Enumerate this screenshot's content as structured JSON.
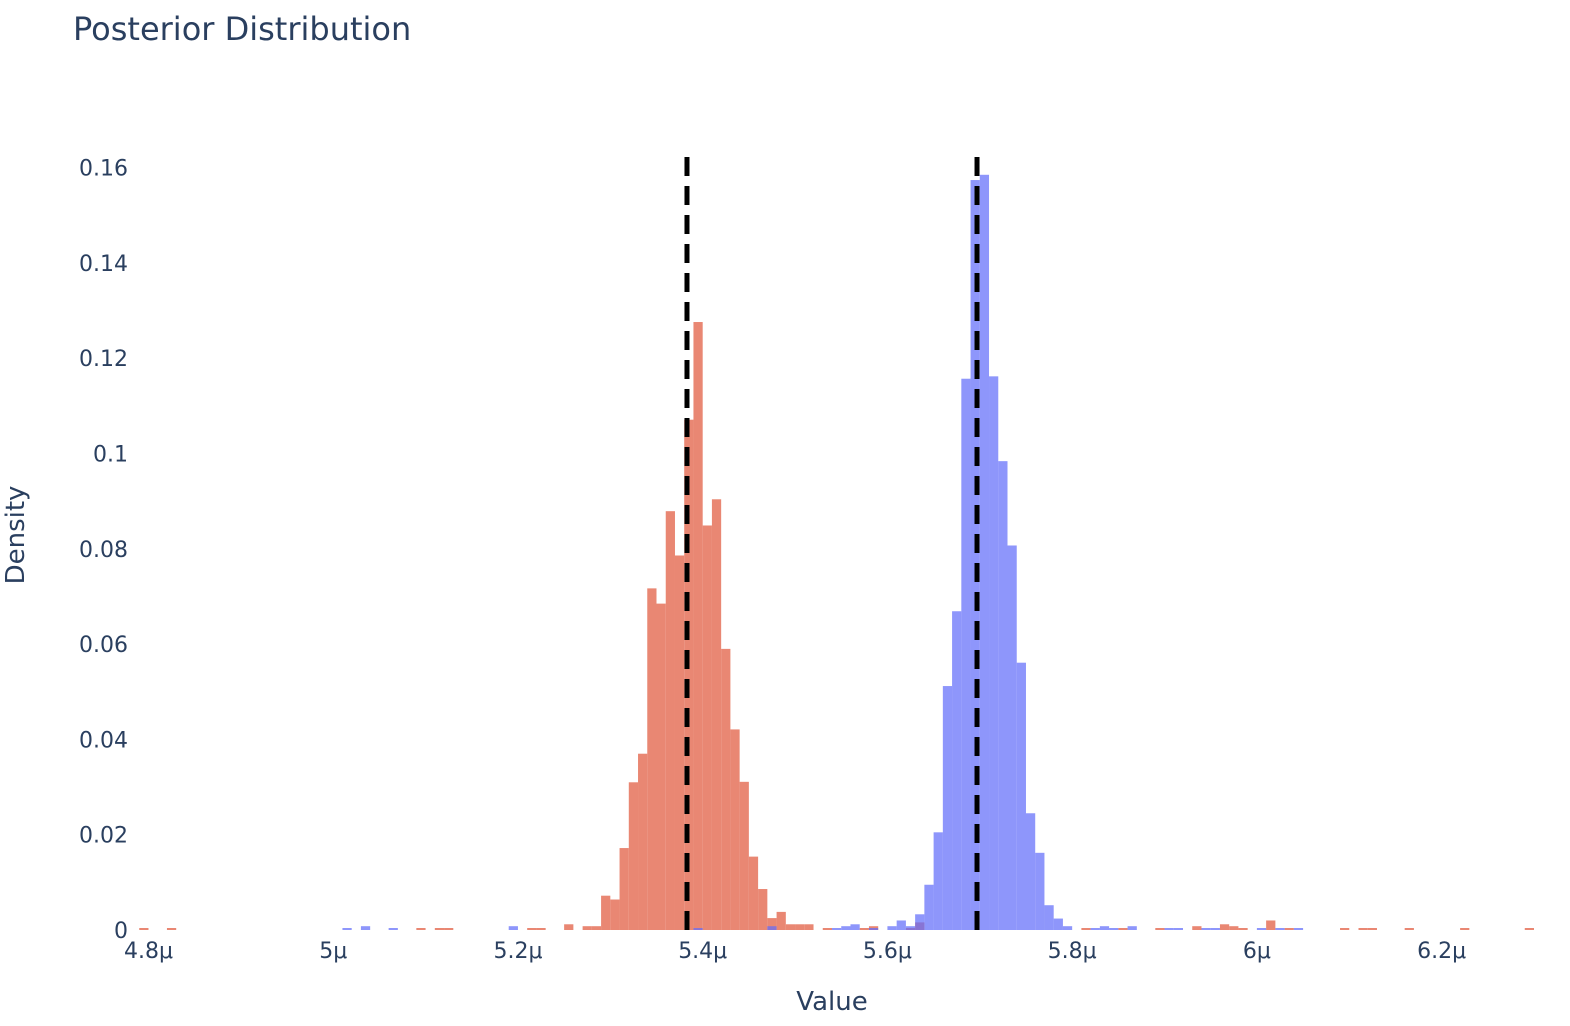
{
  "chart_data": {
    "type": "bar",
    "title": "Posterior Distribution",
    "xlabel": "Value",
    "ylabel": "Density",
    "xlim": [
      4.78,
      6.3
    ],
    "ylim": [
      0,
      0.17
    ],
    "x_unit_suffix": "μ",
    "x_ticks": [
      4.8,
      5.0,
      5.2,
      5.4,
      5.6,
      5.8,
      6.0,
      6.2
    ],
    "x_tick_labels": [
      "4.8μ",
      "5μ",
      "5.2μ",
      "5.4μ",
      "5.6μ",
      "5.8μ",
      "6μ",
      "6.2μ"
    ],
    "y_ticks": [
      0,
      0.02,
      0.04,
      0.06,
      0.08,
      0.1,
      0.12,
      0.14,
      0.16
    ],
    "y_tick_labels": [
      "0",
      "0.02",
      "0.04",
      "0.06",
      "0.08",
      "0.1",
      "0.12",
      "0.14",
      "0.16"
    ],
    "grid": false,
    "bin_width": 0.01,
    "series": [
      {
        "color": "#e5725a",
        "opacity": 0.85,
        "bins": [
          {
            "x": 4.79,
            "y": 0.0004
          },
          {
            "x": 4.82,
            "y": 0.0004
          },
          {
            "x": 5.09,
            "y": 0.0004
          },
          {
            "x": 5.11,
            "y": 0.0004
          },
          {
            "x": 5.12,
            "y": 0.0004
          },
          {
            "x": 5.21,
            "y": 0.0004
          },
          {
            "x": 5.22,
            "y": 0.0004
          },
          {
            "x": 5.25,
            "y": 0.0012
          },
          {
            "x": 5.27,
            "y": 0.0008
          },
          {
            "x": 5.28,
            "y": 0.0008
          },
          {
            "x": 5.29,
            "y": 0.0072
          },
          {
            "x": 5.3,
            "y": 0.0064
          },
          {
            "x": 5.31,
            "y": 0.0172
          },
          {
            "x": 5.32,
            "y": 0.031
          },
          {
            "x": 5.33,
            "y": 0.037
          },
          {
            "x": 5.34,
            "y": 0.0717
          },
          {
            "x": 5.35,
            "y": 0.0685
          },
          {
            "x": 5.36,
            "y": 0.0879
          },
          {
            "x": 5.37,
            "y": 0.0786
          },
          {
            "x": 5.38,
            "y": 0.1071
          },
          {
            "x": 5.39,
            "y": 0.1276
          },
          {
            "x": 5.4,
            "y": 0.0849
          },
          {
            "x": 5.41,
            "y": 0.0904
          },
          {
            "x": 5.42,
            "y": 0.059
          },
          {
            "x": 5.43,
            "y": 0.0421
          },
          {
            "x": 5.44,
            "y": 0.0311
          },
          {
            "x": 5.45,
            "y": 0.0154
          },
          {
            "x": 5.46,
            "y": 0.0086
          },
          {
            "x": 5.47,
            "y": 0.0025
          },
          {
            "x": 5.48,
            "y": 0.0038
          },
          {
            "x": 5.49,
            "y": 0.0012
          },
          {
            "x": 5.5,
            "y": 0.0012
          },
          {
            "x": 5.51,
            "y": 0.0012
          },
          {
            "x": 5.53,
            "y": 0.0004
          },
          {
            "x": 5.57,
            "y": 0.0004
          },
          {
            "x": 5.58,
            "y": 0.0008
          },
          {
            "x": 5.62,
            "y": 0.0004
          },
          {
            "x": 5.63,
            "y": 0.0016
          },
          {
            "x": 5.81,
            "y": 0.0004
          },
          {
            "x": 5.85,
            "y": 0.0004
          },
          {
            "x": 5.89,
            "y": 0.0004
          },
          {
            "x": 5.93,
            "y": 0.0008
          },
          {
            "x": 5.96,
            "y": 0.0012
          },
          {
            "x": 5.97,
            "y": 0.0008
          },
          {
            "x": 5.98,
            "y": 0.0004
          },
          {
            "x": 6.01,
            "y": 0.002
          },
          {
            "x": 6.03,
            "y": 0.0004
          },
          {
            "x": 6.09,
            "y": 0.0004
          },
          {
            "x": 6.11,
            "y": 0.0004
          },
          {
            "x": 6.12,
            "y": 0.0004
          },
          {
            "x": 6.16,
            "y": 0.0004
          },
          {
            "x": 6.22,
            "y": 0.0004
          },
          {
            "x": 6.29,
            "y": 0.0004
          }
        ]
      },
      {
        "color": "#636efa",
        "opacity": 0.72,
        "bins": [
          {
            "x": 5.01,
            "y": 0.0004
          },
          {
            "x": 5.03,
            "y": 0.0008
          },
          {
            "x": 5.06,
            "y": 0.0004
          },
          {
            "x": 5.19,
            "y": 0.0008
          },
          {
            "x": 5.39,
            "y": 0.0004
          },
          {
            "x": 5.47,
            "y": 0.0008
          },
          {
            "x": 5.54,
            "y": 0.0004
          },
          {
            "x": 5.55,
            "y": 0.0008
          },
          {
            "x": 5.56,
            "y": 0.0012
          },
          {
            "x": 5.58,
            "y": 0.0004
          },
          {
            "x": 5.6,
            "y": 0.0008
          },
          {
            "x": 5.61,
            "y": 0.002
          },
          {
            "x": 5.62,
            "y": 0.0008
          },
          {
            "x": 5.63,
            "y": 0.0033
          },
          {
            "x": 5.64,
            "y": 0.0095
          },
          {
            "x": 5.65,
            "y": 0.0205
          },
          {
            "x": 5.66,
            "y": 0.0512
          },
          {
            "x": 5.67,
            "y": 0.0669
          },
          {
            "x": 5.68,
            "y": 0.1157
          },
          {
            "x": 5.69,
            "y": 0.1574
          },
          {
            "x": 5.7,
            "y": 0.1585
          },
          {
            "x": 5.71,
            "y": 0.1162
          },
          {
            "x": 5.72,
            "y": 0.0984
          },
          {
            "x": 5.73,
            "y": 0.0807
          },
          {
            "x": 5.74,
            "y": 0.0561
          },
          {
            "x": 5.75,
            "y": 0.0245
          },
          {
            "x": 5.76,
            "y": 0.0162
          },
          {
            "x": 5.77,
            "y": 0.0052
          },
          {
            "x": 5.78,
            "y": 0.0024
          },
          {
            "x": 5.79,
            "y": 0.0008
          },
          {
            "x": 5.82,
            "y": 0.0004
          },
          {
            "x": 5.83,
            "y": 0.0008
          },
          {
            "x": 5.84,
            "y": 0.0004
          },
          {
            "x": 5.86,
            "y": 0.0008
          },
          {
            "x": 5.9,
            "y": 0.0004
          },
          {
            "x": 5.91,
            "y": 0.0004
          },
          {
            "x": 5.94,
            "y": 0.0004
          },
          {
            "x": 5.95,
            "y": 0.0004
          },
          {
            "x": 6.0,
            "y": 0.0004
          },
          {
            "x": 6.02,
            "y": 0.0004
          },
          {
            "x": 6.04,
            "y": 0.0004
          }
        ]
      }
    ],
    "vlines": [
      {
        "x": 5.383,
        "color": "#000000",
        "style": "dashed"
      },
      {
        "x": 5.697,
        "color": "#000000",
        "style": "dashed"
      }
    ]
  }
}
